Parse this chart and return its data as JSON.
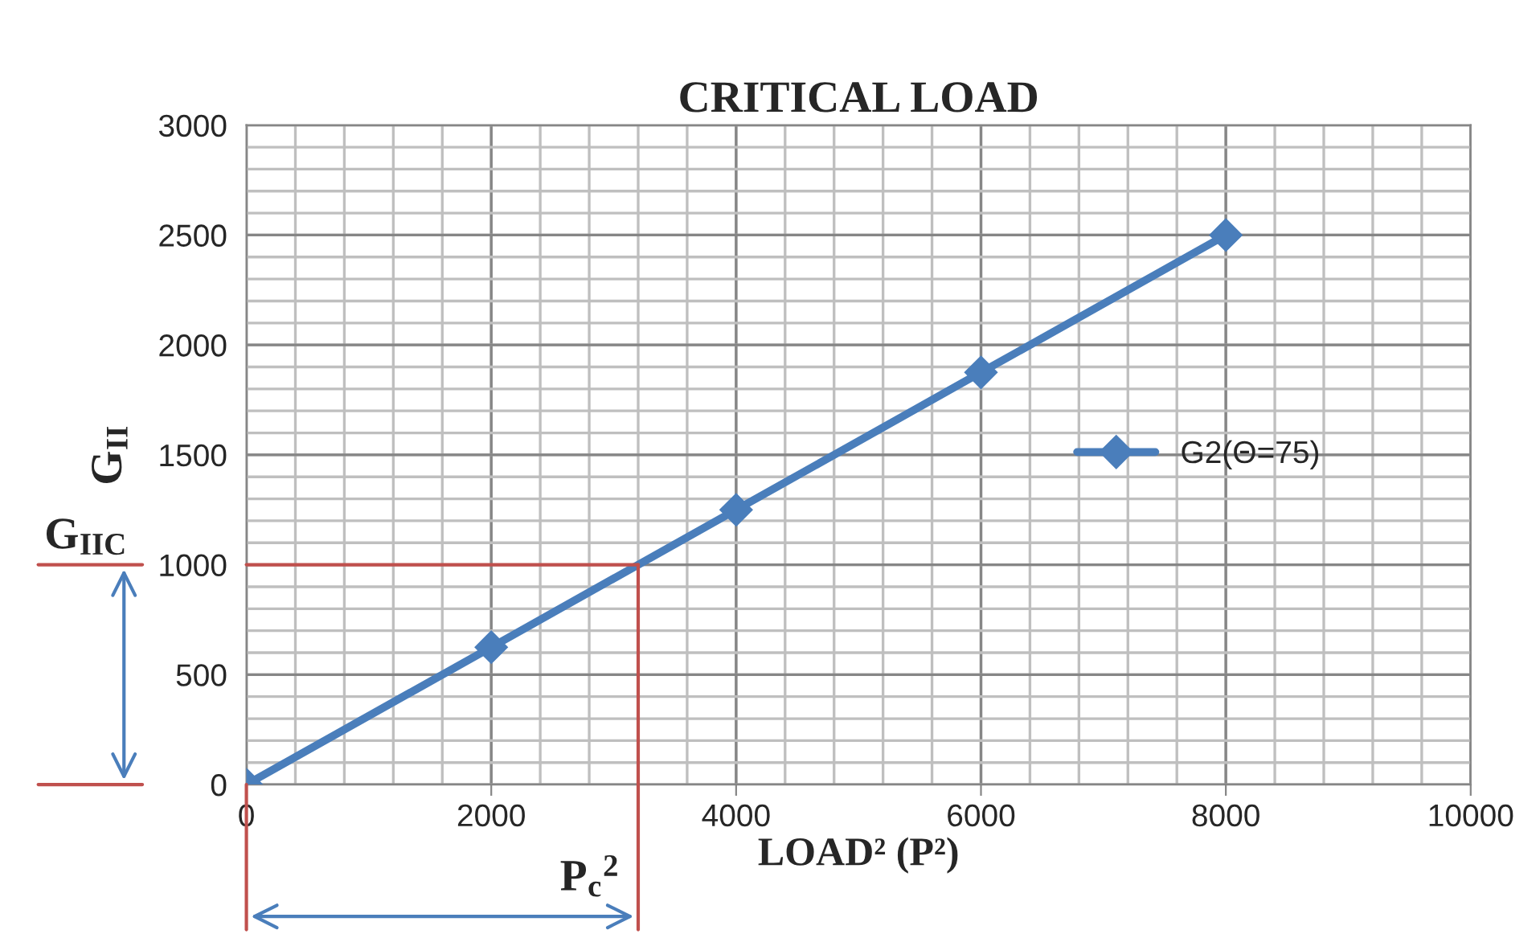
{
  "chart_data": {
    "type": "line",
    "title": "CRITICAL LOAD",
    "xlabel": "LOAD² (P²)",
    "ylabel": "G$_{II}$",
    "x": [
      0,
      2000,
      4000,
      6000,
      8000
    ],
    "series": [
      {
        "name": "G2(Θ=75)",
        "color": "#4a7ebb",
        "values": [
          0,
          625,
          1250,
          1875,
          2500
        ]
      }
    ],
    "xlim": [
      0,
      10000
    ],
    "xticks": [
      0,
      2000,
      4000,
      6000,
      8000,
      10000
    ],
    "ylim": [
      0,
      3000
    ],
    "yticks": [
      0,
      500,
      1000,
      1500,
      2000,
      2500,
      3000
    ],
    "ref_lines": [
      {
        "axis": "y",
        "value": 1000,
        "label": "G$_{IIC}$",
        "color": "#c0504d"
      },
      {
        "axis": "x",
        "value": 3200,
        "label": "P$_{c}$$^{2}$",
        "color": "#c0504d"
      }
    ],
    "grid": true,
    "legend": "right",
    "marker": "diamond",
    "line_style": "solid"
  }
}
